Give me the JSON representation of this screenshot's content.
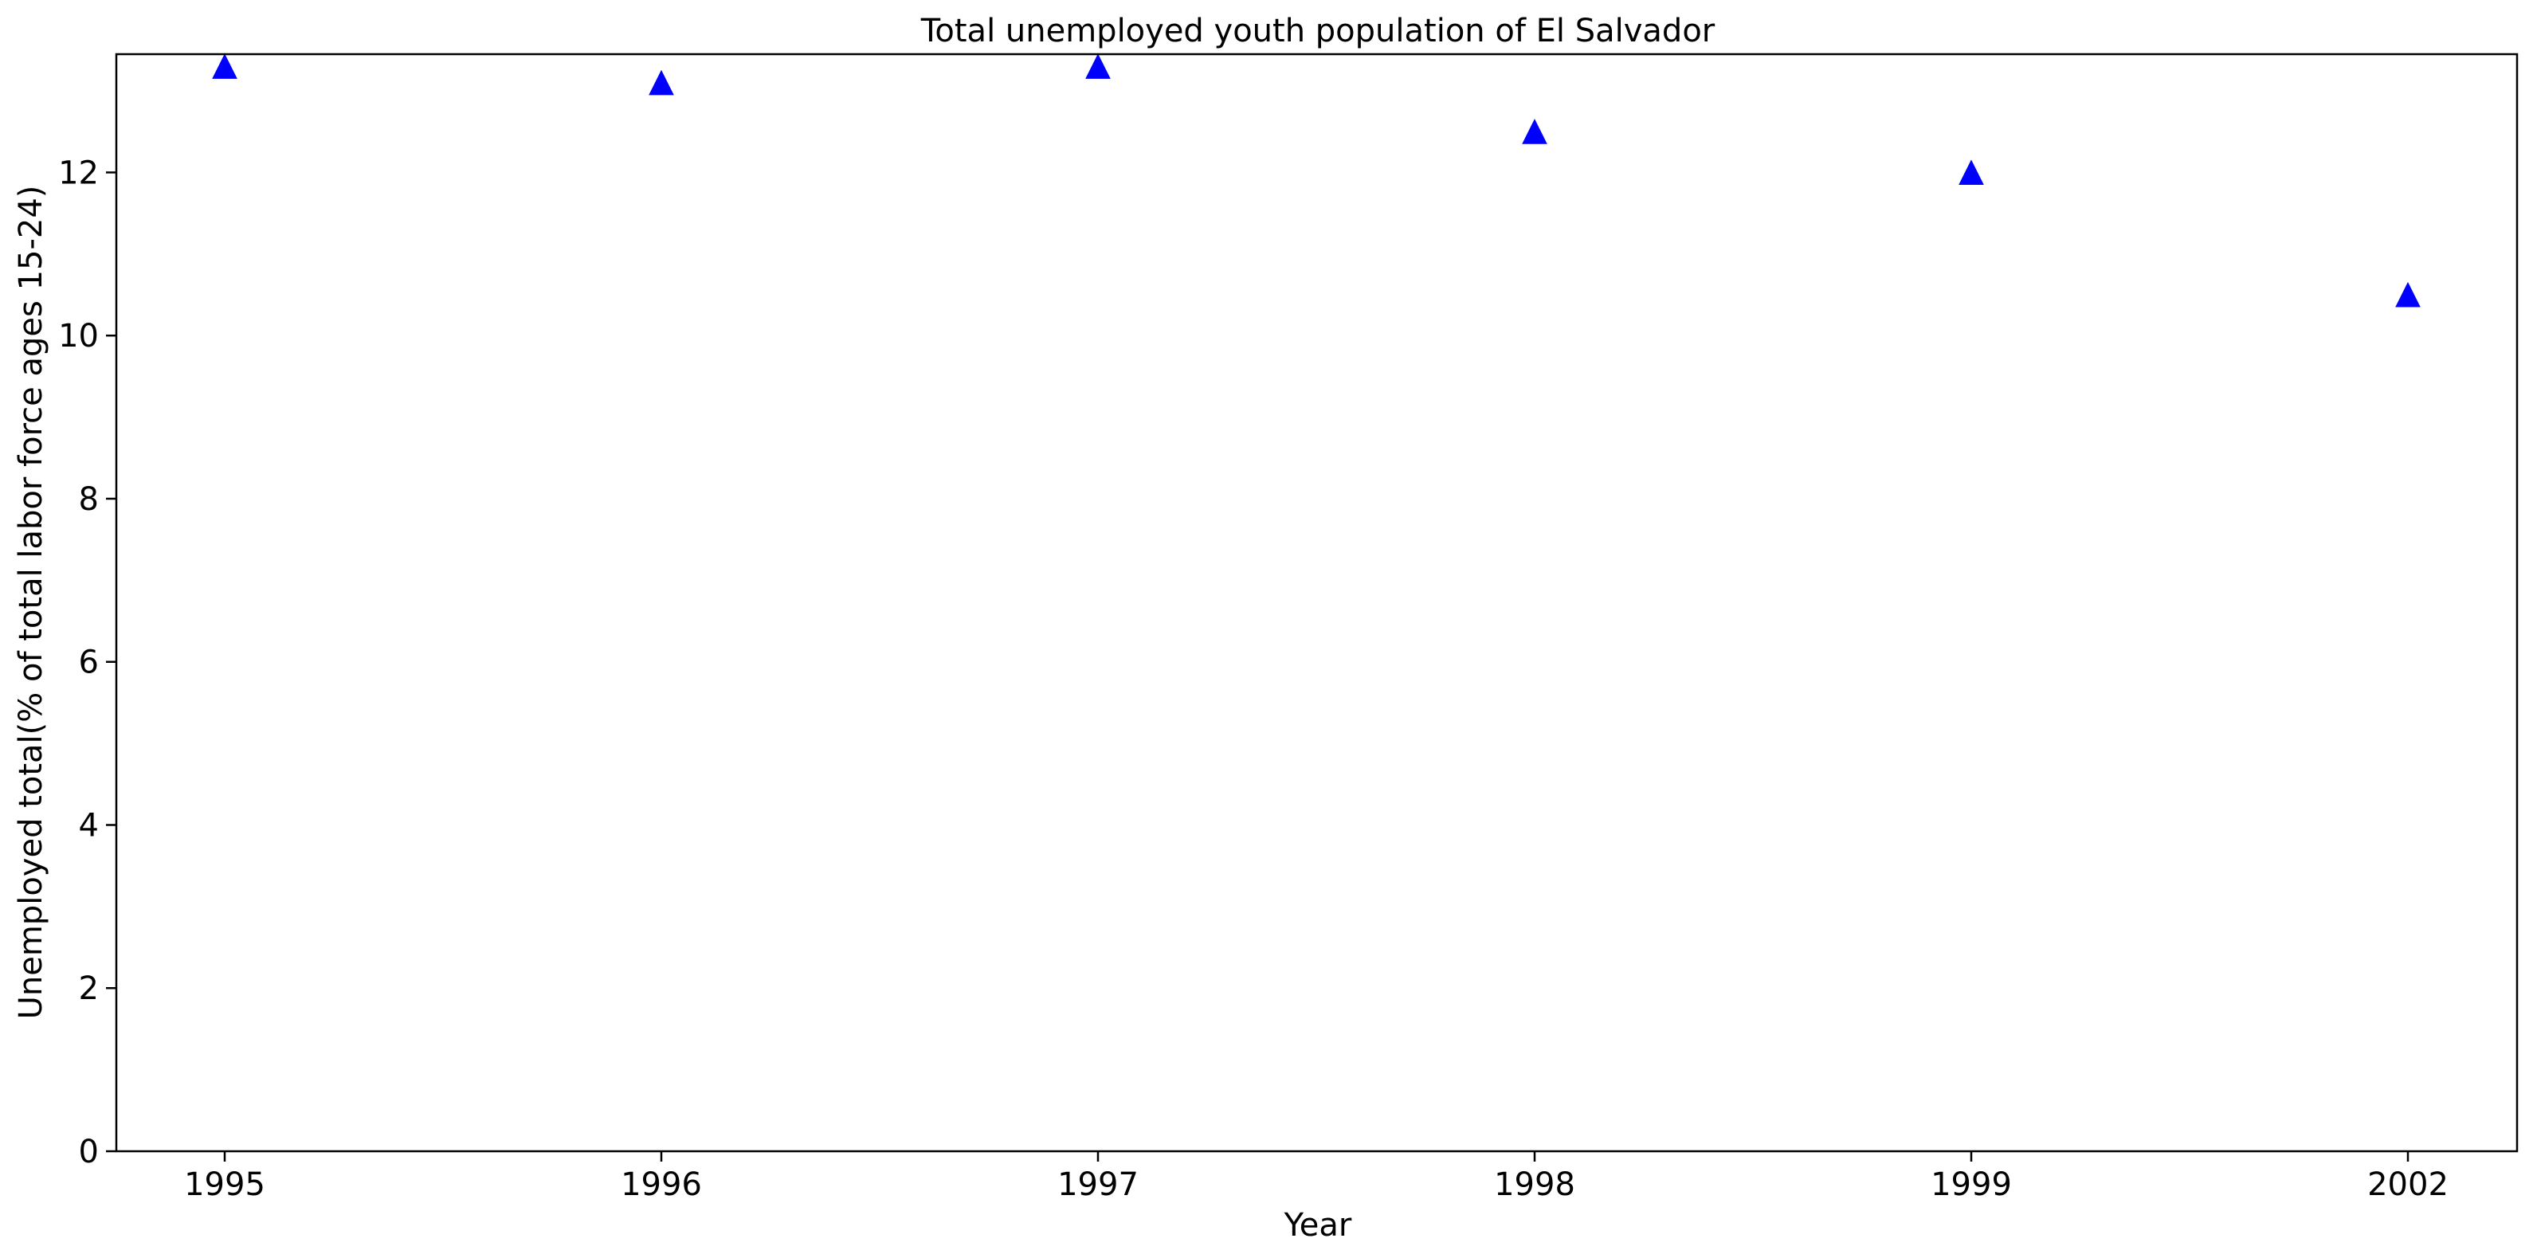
{
  "chart_data": {
    "type": "scatter",
    "title": "Total unemployed youth population of El Salvador",
    "xlabel": "Year",
    "ylabel": "Unemployed total(% of total labor force ages 15-24)",
    "categories": [
      "1995",
      "1996",
      "1997",
      "1998",
      "1999",
      "2002"
    ],
    "values": [
      13.3,
      13.1,
      13.3,
      12.5,
      12.0,
      10.5
    ],
    "ylim": [
      0,
      13.45
    ],
    "yticks": [
      0,
      2,
      4,
      6,
      8,
      10,
      12
    ],
    "marker": "triangle-up",
    "color": "#0000ff",
    "grid": false
  }
}
